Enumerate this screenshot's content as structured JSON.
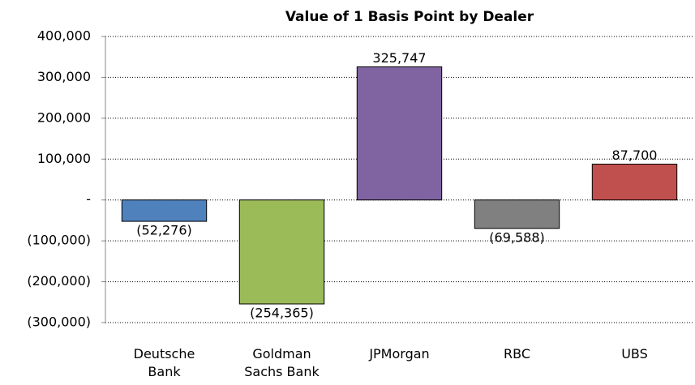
{
  "chart_data": {
    "type": "bar",
    "title": "Value of 1 Basis Point by Dealer",
    "categories": [
      "Deutsche Bank",
      "Goldman Sachs Bank",
      "JPMorgan",
      "RBC",
      "UBS"
    ],
    "values": [
      -52276,
      -254365,
      325747,
      -69588,
      87700
    ],
    "value_labels": [
      "(52,276)",
      "(254,365)",
      "325,747",
      "(69,588)",
      "87,700"
    ],
    "colors": [
      "#4f81bd",
      "#9bbb59",
      "#8064a2",
      "#808080",
      "#c0504d"
    ],
    "ylim": [
      -300000,
      400000
    ],
    "yticks": [
      {
        "value": -300000,
        "label": "(300,000)"
      },
      {
        "value": -200000,
        "label": "(200,000)"
      },
      {
        "value": -100000,
        "label": "(100,000)"
      },
      {
        "value": 0,
        "label": "-"
      },
      {
        "value": 100000,
        "label": "100,000"
      },
      {
        "value": 200000,
        "label": "200,000"
      },
      {
        "value": 300000,
        "label": "300,000"
      },
      {
        "value": 400000,
        "label": "400,000"
      }
    ],
    "grid": true
  }
}
